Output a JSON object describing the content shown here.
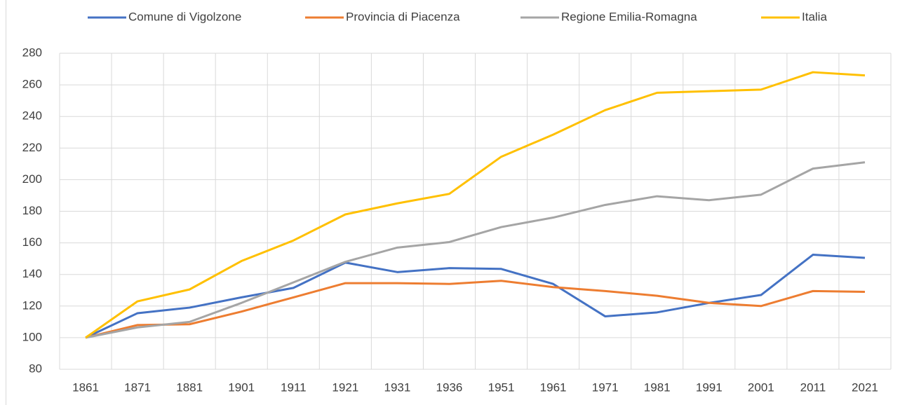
{
  "chart_data": {
    "type": "line",
    "categories": [
      "1861",
      "1871",
      "1881",
      "1901",
      "1911",
      "1921",
      "1931",
      "1936",
      "1951",
      "1961",
      "1971",
      "1981",
      "1991",
      "2001",
      "2011",
      "2021"
    ],
    "series": [
      {
        "name": "Comune di Vigolzone",
        "color": "#4472c4",
        "values": [
          100,
          115.5,
          119,
          125.5,
          131.5,
          147.5,
          141.5,
          144,
          143.5,
          134,
          113.5,
          116,
          122,
          127,
          152.5,
          150.5
        ]
      },
      {
        "name": "Provincia di Piacenza",
        "color": "#ed7d31",
        "values": [
          100,
          108,
          108.5,
          116.5,
          125.5,
          134.5,
          134.5,
          134,
          136,
          132,
          129.5,
          126.5,
          122,
          120,
          129.5,
          129
        ]
      },
      {
        "name": "Regione Emilia-Romagna",
        "color": "#a5a5a5",
        "values": [
          100,
          106.5,
          110,
          122,
          135,
          148,
          157,
          160.5,
          170,
          176,
          184,
          189.5,
          187,
          190.5,
          207,
          211
        ]
      },
      {
        "name": "Italia",
        "color": "#ffc000",
        "values": [
          100,
          123,
          130.5,
          148.5,
          161.5,
          178,
          185,
          191,
          214.5,
          228.5,
          244,
          255,
          256,
          257,
          268,
          266
        ]
      }
    ],
    "ylim": [
      80,
      280
    ],
    "yticks": [
      80,
      100,
      120,
      140,
      160,
      180,
      200,
      220,
      240,
      260,
      280
    ],
    "grid": true,
    "legend": "top"
  }
}
